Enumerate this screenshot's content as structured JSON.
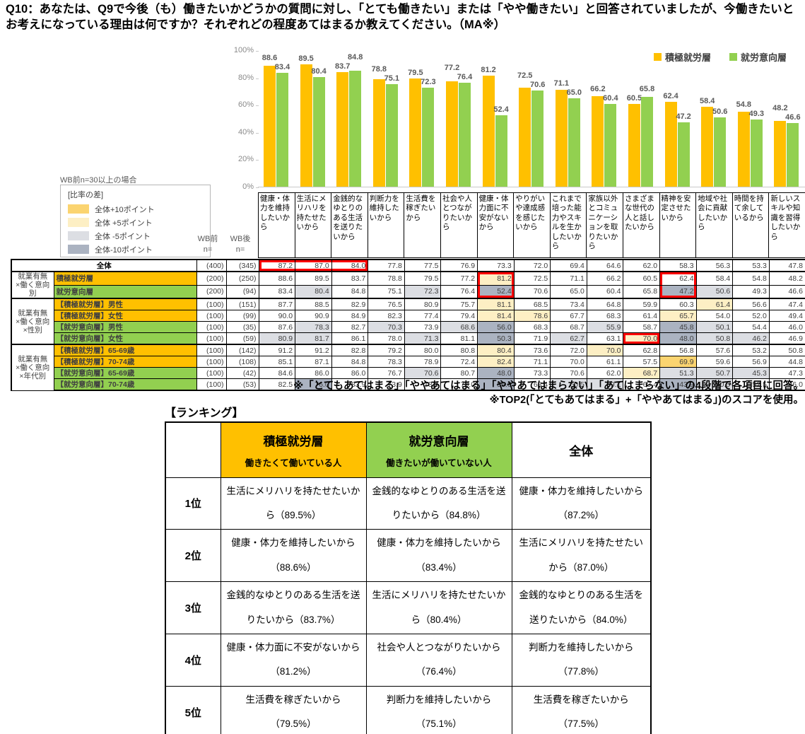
{
  "title": "Q10：あなたは、Q9で今後（も）働きたいかどうかの質問に対し、「とても働きたい」または「やや働きたい」と回答されていましたが、今働きたいとお考えになっている理由は何ですか？それぞれどの程度あてはまるか教えてください。（MA※）",
  "chart_data": {
    "type": "bar",
    "categories": [
      "健康・体力を維持したいから",
      "生活にメリハリを持たせたいから",
      "金銭的なゆとりのある生活を送りたいから",
      "判断力を維持したいから",
      "生活費を稼ぎたいから",
      "社会や人とつながりたいから",
      "健康・体力面に不安がないから",
      "やりがいや達成感を感じたいから",
      "これまで培った能力やスキルを生かしたいから",
      "家族以外とコミュニケーションを取りたいから",
      "さまざまな世代の人と話したいから",
      "精神を安定させたいから",
      "地域や社会に貢献したいから",
      "時間を持て余しているから",
      "新しいスキルや知識を習得したいから"
    ],
    "series": [
      {
        "name": "積極就労層",
        "color": "#FFC000",
        "values": [
          88.6,
          89.5,
          83.7,
          78.8,
          79.5,
          77.2,
          81.2,
          72.5,
          71.1,
          66.2,
          60.5,
          62.4,
          58.4,
          54.8,
          48.2
        ]
      },
      {
        "name": "就労意向層",
        "color": "#92D050",
        "values": [
          83.4,
          80.4,
          84.8,
          75.1,
          72.3,
          76.4,
          52.4,
          70.6,
          65.0,
          60.4,
          65.8,
          47.2,
          50.6,
          49.3,
          46.6
        ]
      }
    ],
    "ylim": [
      0,
      100
    ],
    "yticks": [
      "0%",
      "20%",
      "40%",
      "60%",
      "80%",
      "100%"
    ],
    "grid": false,
    "legend_position": "top-right"
  },
  "wb_note": "WB前n=30以上の場合",
  "diff_legend": {
    "title": "[比率の差]",
    "items": [
      {
        "label": "全体+10ポイント",
        "key": "plus10"
      },
      {
        "label": "全体 +5ポイント",
        "key": "plus5"
      },
      {
        "label": "全体 -5ポイント",
        "key": "minus5"
      },
      {
        "label": "全体-10ポイント",
        "key": "minus10"
      }
    ]
  },
  "diff_colors": {
    "plus10": "#FBD470",
    "plus5": "#FDEFC4",
    "minus5": "#DCDEE3",
    "minus10": "#ABB3C1",
    "red_box": "#FF0000"
  },
  "table": {
    "wb_header": {
      "before": "WB前\nn=",
      "after": "WB後\nn="
    },
    "rows": [
      {
        "group": "",
        "group_span": 0,
        "label": "全体",
        "label_bg": "#FFFFFF",
        "is_total": true,
        "n_before": "(400)",
        "n_after": "(345)",
        "values": [
          87.2,
          87.0,
          84.0,
          77.8,
          77.5,
          76.9,
          73.3,
          72.0,
          69.4,
          64.6,
          62.0,
          58.3,
          56.3,
          53.3,
          47.8
        ]
      },
      {
        "group": "就業有無\n×働く意向別",
        "group_span": 2,
        "label": "積極就労層",
        "label_bg": "#FFC000",
        "n_before": "(200)",
        "n_after": "(250)",
        "values": [
          88.6,
          89.5,
          83.7,
          78.8,
          79.5,
          77.2,
          81.2,
          72.5,
          71.1,
          66.2,
          60.5,
          62.4,
          58.4,
          54.8,
          48.2
        ]
      },
      {
        "group": "",
        "group_span": 0,
        "label": "就労意向層",
        "label_bg": "#92D050",
        "n_before": "(200)",
        "n_after": "(94)",
        "values": [
          83.4,
          80.4,
          84.8,
          75.1,
          72.3,
          76.4,
          52.4,
          70.6,
          65.0,
          60.4,
          65.8,
          47.2,
          50.6,
          49.3,
          46.6
        ]
      },
      {
        "group": "就業有無\n×働く意向\n×性別",
        "group_span": 4,
        "label": "【積極就労層】男性",
        "label_bg": "#FFC000",
        "n_before": "(100)",
        "n_after": "(151)",
        "values": [
          87.7,
          88.5,
          82.9,
          76.5,
          80.9,
          75.7,
          81.1,
          68.5,
          73.4,
          64.8,
          59.9,
          60.3,
          61.4,
          56.6,
          47.4
        ]
      },
      {
        "group": "",
        "group_span": 0,
        "label": "【積極就労層】女性",
        "label_bg": "#FFC000",
        "n_before": "(100)",
        "n_after": "(99)",
        "values": [
          90.0,
          90.9,
          84.9,
          82.3,
          77.4,
          79.4,
          81.4,
          78.6,
          67.7,
          68.3,
          61.4,
          65.7,
          54.0,
          52.0,
          49.4
        ]
      },
      {
        "group": "",
        "group_span": 0,
        "label": "【就労意向層】男性",
        "label_bg": "#92D050",
        "n_before": "(100)",
        "n_after": "(35)",
        "values": [
          87.6,
          78.3,
          82.7,
          70.3,
          73.9,
          68.6,
          56.0,
          68.3,
          68.7,
          55.9,
          58.7,
          45.8,
          50.1,
          54.4,
          46.0
        ]
      },
      {
        "group": "",
        "group_span": 0,
        "label": "【就労意向層】女性",
        "label_bg": "#92D050",
        "n_before": "(100)",
        "n_after": "(59)",
        "values": [
          80.9,
          81.7,
          86.1,
          78.0,
          71.3,
          81.1,
          50.3,
          71.9,
          62.7,
          63.1,
          70.0,
          48.0,
          50.8,
          46.2,
          46.9
        ]
      },
      {
        "group": "就業有無\n×働く意向\n×年代別",
        "group_span": 4,
        "label": "【積極就労層】65-69歳",
        "label_bg": "#FFC000",
        "n_before": "(100)",
        "n_after": "(142)",
        "values": [
          91.2,
          91.2,
          82.8,
          79.2,
          80.0,
          80.8,
          80.4,
          73.6,
          72.0,
          70.0,
          62.8,
          56.8,
          57.6,
          53.2,
          50.8
        ]
      },
      {
        "group": "",
        "group_span": 0,
        "label": "【積極就労層】70-74歳",
        "label_bg": "#FFC000",
        "n_before": "(100)",
        "n_after": "(108)",
        "values": [
          85.1,
          87.1,
          84.8,
          78.3,
          78.9,
          72.4,
          82.4,
          71.1,
          70.0,
          61.1,
          57.5,
          69.9,
          59.6,
          56.9,
          44.8
        ]
      },
      {
        "group": "",
        "group_span": 0,
        "label": "【就労意向層】65-69歳",
        "label_bg": "#92D050",
        "n_before": "(100)",
        "n_after": "(42)",
        "values": [
          84.6,
          86.0,
          86.0,
          76.7,
          70.6,
          80.7,
          48.0,
          73.3,
          70.6,
          62.0,
          68.7,
          51.3,
          50.7,
          45.3,
          47.3
        ]
      },
      {
        "group": "",
        "group_span": 0,
        "label": "【就労意向層】70-74歳",
        "label_bg": "#92D050",
        "n_before": "(100)",
        "n_after": "(53)",
        "values": [
          82.5,
          76.0,
          83.9,
          73.9,
          73.5,
          73.0,
          56.0,
          68.4,
          60.5,
          59.1,
          63.4,
          43.9,
          50.5,
          52.5,
          46.0
        ]
      }
    ],
    "red_boxes": [
      {
        "r1": 0,
        "c1": 0,
        "r2": 0,
        "c2": 2
      },
      {
        "r1": 1,
        "c1": 6,
        "r2": 2,
        "c2": 6
      },
      {
        "r1": 1,
        "c1": 11,
        "r2": 2,
        "c2": 11
      },
      {
        "r1": 6,
        "c1": 10,
        "r2": 6,
        "c2": 10
      }
    ]
  },
  "notes": [
    "※「とてもあてはまる」「ややあてはまる」「ややあてはまらない」「あてはまらない」の4段階で各項目に回答。",
    "※TOP2(「とてもあてはまる」+「ややあてはまる」)のスコアを使用。"
  ],
  "ranking": {
    "heading": "【ランキング】",
    "columns": [
      {
        "title": "積極就労層",
        "subtitle": "働きたくて働いている人",
        "color": "#FFC000"
      },
      {
        "title": "就労意向層",
        "subtitle": "働きたいが働いていない人",
        "color": "#92D050"
      },
      {
        "title": "全体",
        "subtitle": "",
        "color": "#FFFFFF"
      }
    ],
    "rows": [
      {
        "rank": "1位",
        "cells": [
          "生活にメリハリを持たせたいから（89.5%）",
          "金銭的なゆとりのある生活を送りたいから（84.8%）",
          "健康・体力を維持したいから（87.2%）"
        ]
      },
      {
        "rank": "2位",
        "cells": [
          "健康・体力を維持したいから（88.6%）",
          "健康・体力を維持したいから（83.4%）",
          "生活にメリハリを持たせたいから（87.0%）"
        ]
      },
      {
        "rank": "3位",
        "cells": [
          "金銭的なゆとりのある生活を送りたいから（83.7%）",
          "生活にメリハリを持たせたいから（80.4%）",
          "金銭的なゆとりのある生活を送りたいから（84.0%）"
        ]
      },
      {
        "rank": "4位",
        "cells": [
          "健康・体力面に不安がないから（81.2%）",
          "社会や人とつながりたいから（76.4%）",
          "判断力を維持したいから（77.8%）"
        ]
      },
      {
        "rank": "5位",
        "cells": [
          "生活費を稼ぎたいから（79.5%）",
          "判断力を維持したいから（75.1%）",
          "生活費を稼ぎたいから（77.5%）"
        ]
      }
    ]
  }
}
